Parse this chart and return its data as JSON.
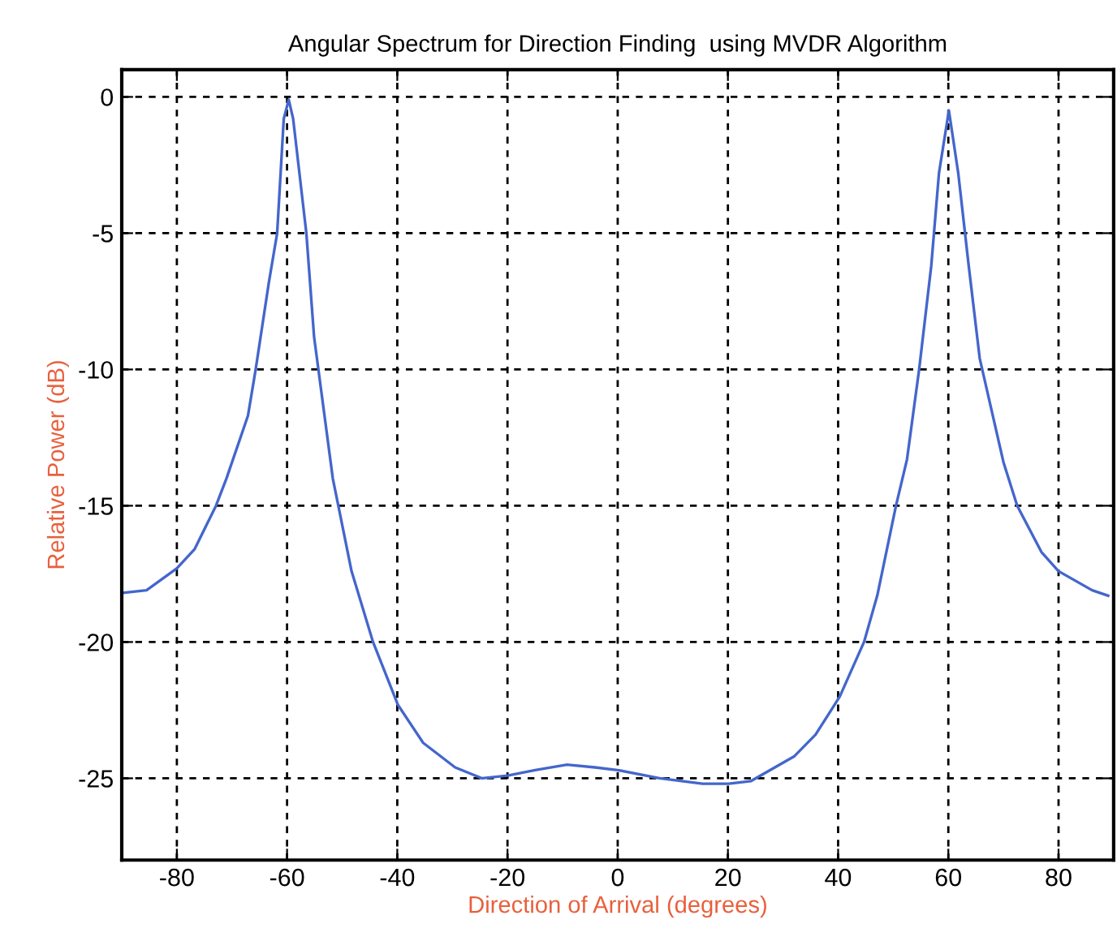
{
  "chart_data": {
    "type": "line",
    "title": "Angular Spectrum for Direction Finding  using MVDR Algorithm",
    "xlabel": "Direction of Arrival (degrees)",
    "ylabel": "Relative Power (dB)",
    "series": [
      {
        "color": "#4466cc",
        "x": [
          -89.9,
          -85.5,
          -80,
          -76.8,
          -72.9,
          -71,
          -67.1,
          -65.7,
          -63.3,
          -61.8,
          -60.6,
          -59.7,
          -58.9,
          -56.5,
          -55.1,
          -51.7,
          -50.7,
          -48.3,
          -44.4,
          -39.9,
          -35.3,
          -29.5,
          -24.6,
          -20,
          -15,
          -9.2,
          -4.1,
          0,
          7.6,
          15.4,
          20.1,
          24.2,
          32,
          35.9,
          40.3,
          44.7,
          47.1,
          50.5,
          52.5,
          54.7,
          56.9,
          58.3,
          60.1,
          61.8,
          63.7,
          65.7,
          70,
          72.5,
          76.9,
          80,
          86.1,
          89
        ],
        "values": [
          -18.2,
          -18.1,
          -17.3,
          -16.6,
          -15,
          -14,
          -11.7,
          -10,
          -6.8,
          -5,
          -0.8,
          -0.1,
          -0.8,
          -5,
          -8.8,
          -14,
          -15,
          -17.4,
          -20,
          -22.3,
          -23.7,
          -24.6,
          -25,
          -24.9,
          -24.7,
          -24.5,
          -24.6,
          -24.7,
          -25,
          -25.2,
          -25.2,
          -25.1,
          -24.2,
          -23.4,
          -22,
          -20,
          -18.3,
          -15,
          -13.3,
          -10,
          -6.2,
          -2.8,
          -0.5,
          -2.8,
          -6.2,
          -9.6,
          -13.4,
          -15,
          -16.7,
          -17.4,
          -18.1,
          -18.3
        ]
      }
    ],
    "xlim": [
      -90,
      90
    ],
    "xticks": [
      -80,
      -60,
      -40,
      -20,
      0,
      20,
      40,
      60,
      80
    ],
    "ylim": [
      -28,
      1
    ],
    "yticks": [
      -25,
      -20,
      -15,
      -10,
      -5,
      0
    ],
    "grid": true,
    "line_style": "solid",
    "marker": "none"
  }
}
